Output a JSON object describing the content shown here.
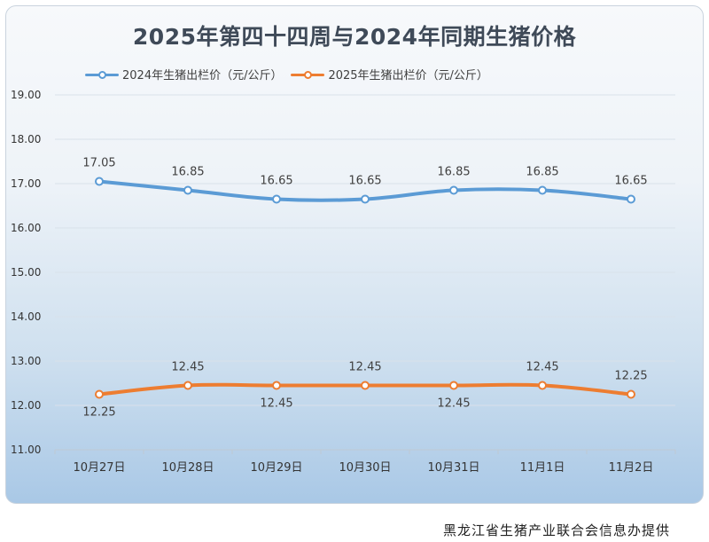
{
  "chart_data": {
    "type": "line",
    "title": "2025年第四十四周与2024年同期生猪价格",
    "categories": [
      "10月27日",
      "10月28日",
      "10月29日",
      "10月30日",
      "10月31日",
      "11月1日",
      "11月2日"
    ],
    "series": [
      {
        "name": "2024年生猪出栏价（元/公斤）",
        "color": "#5b9bd5",
        "values": [
          17.05,
          16.85,
          16.65,
          16.65,
          16.85,
          16.85,
          16.65
        ],
        "labels": [
          "17.05",
          "16.85",
          "16.65",
          "16.65",
          "16.85",
          "16.85",
          "16.65"
        ],
        "label_side": [
          "above",
          "above",
          "above",
          "above",
          "above",
          "above",
          "above"
        ]
      },
      {
        "name": "2025年生猪出栏价（元/公斤）",
        "color": "#ed7d31",
        "values": [
          12.25,
          12.45,
          12.45,
          12.45,
          12.45,
          12.45,
          12.25
        ],
        "labels": [
          "12.25",
          "12.45",
          "12.45",
          "12.45",
          "12.45",
          "12.45",
          "12.25"
        ],
        "label_side": [
          "below",
          "above",
          "below",
          "above",
          "below",
          "above",
          "above"
        ]
      }
    ],
    "y_ticks": [
      "11.00",
      "12.00",
      "13.00",
      "14.00",
      "15.00",
      "16.00",
      "17.00",
      "18.00",
      "19.00"
    ],
    "ylim": [
      11,
      19
    ],
    "grid": true,
    "legend": "top"
  },
  "footer": "黑龙江省生猪产业联合会信息办提供"
}
